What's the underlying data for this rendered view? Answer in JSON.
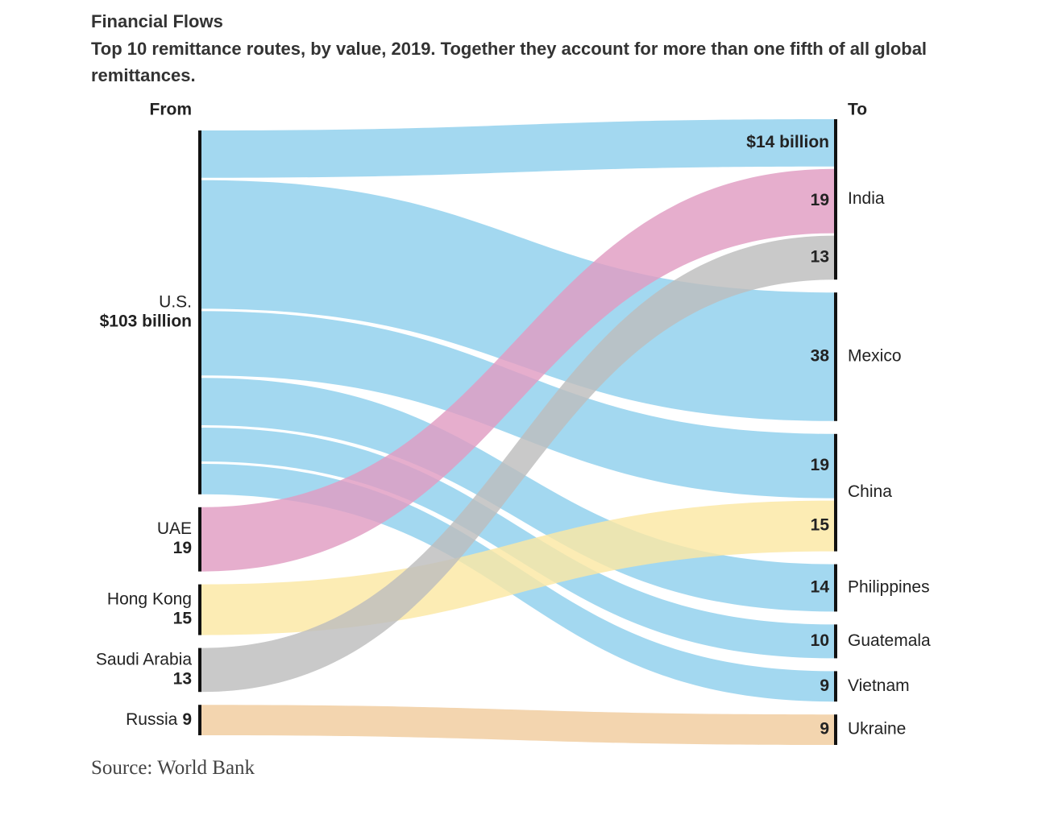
{
  "chart_data": {
    "type": "sankey",
    "title": "Financial Flows",
    "subtitle": "Top 10 remittance routes, by value, 2019. Together they account for more than one fifth of all global remittances.",
    "from_label": "From",
    "to_label": "To",
    "sources": [
      {
        "name": "U.S.",
        "value": 103,
        "value_label": "$103 billion",
        "color": "#8fcfed"
      },
      {
        "name": "UAE",
        "value": 19,
        "color": "#e09cc2"
      },
      {
        "name": "Hong Kong",
        "value": 15,
        "color": "#fbe8a3"
      },
      {
        "name": "Saudi Arabia",
        "value": 13,
        "color": "#bdbdbd"
      },
      {
        "name": "Russia",
        "value": 9,
        "color": "#f0cc9e"
      }
    ],
    "targets": [
      {
        "name": "India"
      },
      {
        "name": "Mexico"
      },
      {
        "name": "China"
      },
      {
        "name": "Philippines"
      },
      {
        "name": "Guatemala"
      },
      {
        "name": "Vietnam"
      },
      {
        "name": "Ukraine"
      }
    ],
    "flows": [
      {
        "source": "U.S.",
        "target": "India",
        "value": 14,
        "value_label": "$14 billion"
      },
      {
        "source": "U.S.",
        "target": "Mexico",
        "value": 38
      },
      {
        "source": "U.S.",
        "target": "China",
        "value": 19
      },
      {
        "source": "U.S.",
        "target": "Philippines",
        "value": 14
      },
      {
        "source": "U.S.",
        "target": "Guatemala",
        "value": 10
      },
      {
        "source": "U.S.",
        "target": "Vietnam",
        "value": 9
      },
      {
        "source": "UAE",
        "target": "India",
        "value": 19
      },
      {
        "source": "Hong Kong",
        "target": "China",
        "value": 15
      },
      {
        "source": "Saudi Arabia",
        "target": "India",
        "value": 13
      },
      {
        "source": "Russia",
        "target": "Ukraine",
        "value": 9
      }
    ],
    "source_note": "Source: World Bank"
  }
}
